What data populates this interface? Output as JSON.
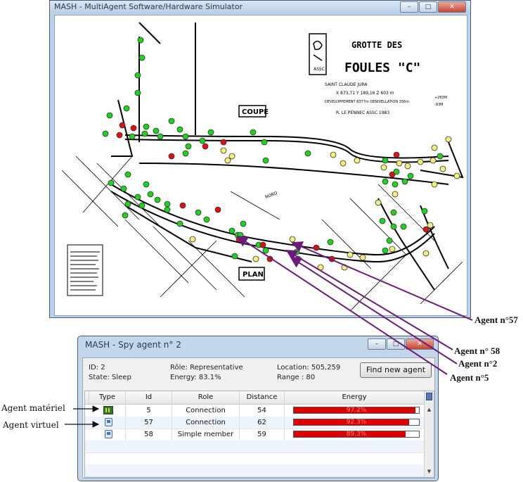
{
  "main_window": {
    "title": "MASH - MultiAgent Software/Hardware Simulator",
    "buttons": {
      "minimize": "–",
      "maximize": "□",
      "close": "✕"
    }
  },
  "map": {
    "title_line1": "GROTTE DES",
    "title_line2": "FOULES \"C\"",
    "location": "SAINT CLAUDE      JURA",
    "coords": "X 873,71   Y 189,16   Z 603 m",
    "development": "DEVELOPPEMENT  8377m   DENIVELLATION  356m",
    "elevations": [
      "+263M",
      "-93M"
    ],
    "author": "R. LE PENNEC   ASSC 1983",
    "section_label": "COUPE",
    "plan_label": "PLAN",
    "logo_text": "ASSC",
    "north_label": "NORD"
  },
  "spy_window": {
    "title": "MASH - Spy agent n° 2",
    "buttons": {
      "minimize": "–",
      "maximize": "□",
      "close": "✕"
    },
    "info": {
      "id": "ID: 2",
      "state": "State: Sleep",
      "role": "Rôle: Representative",
      "energy": "Energy: 83.1%",
      "location": "Location: 505,259",
      "range": "Range : 80"
    },
    "find_button": "Find new agent",
    "columns": [
      "Type",
      "Id",
      "Role",
      "Distance",
      "Energy"
    ],
    "rows": [
      {
        "type": "hardware",
        "id": "5",
        "role": "Connection",
        "distance": "54",
        "energy_text": "97.2%",
        "energy": 0.972
      },
      {
        "type": "virtual",
        "id": "57",
        "role": "Connection",
        "distance": "62",
        "energy_text": "92.3%",
        "energy": 0.923
      },
      {
        "type": "virtual",
        "id": "58",
        "role": "Simple member",
        "distance": "59",
        "energy_text": "89.3%",
        "energy": 0.893
      }
    ]
  },
  "annotations": {
    "agent_hw": "Agent matériel",
    "agent_virtual": "Agent virtuel",
    "agent57": "Agent n°57",
    "agent58": "Agent n° 58",
    "agent2": "Agent n°2",
    "agent5": "Agent n°5"
  },
  "colors": {
    "green": "#1fd21f",
    "red": "#e01010",
    "yellow": "#f2f07a",
    "arrow": "#6a1a7a",
    "energy_bar": "#e00000"
  }
}
